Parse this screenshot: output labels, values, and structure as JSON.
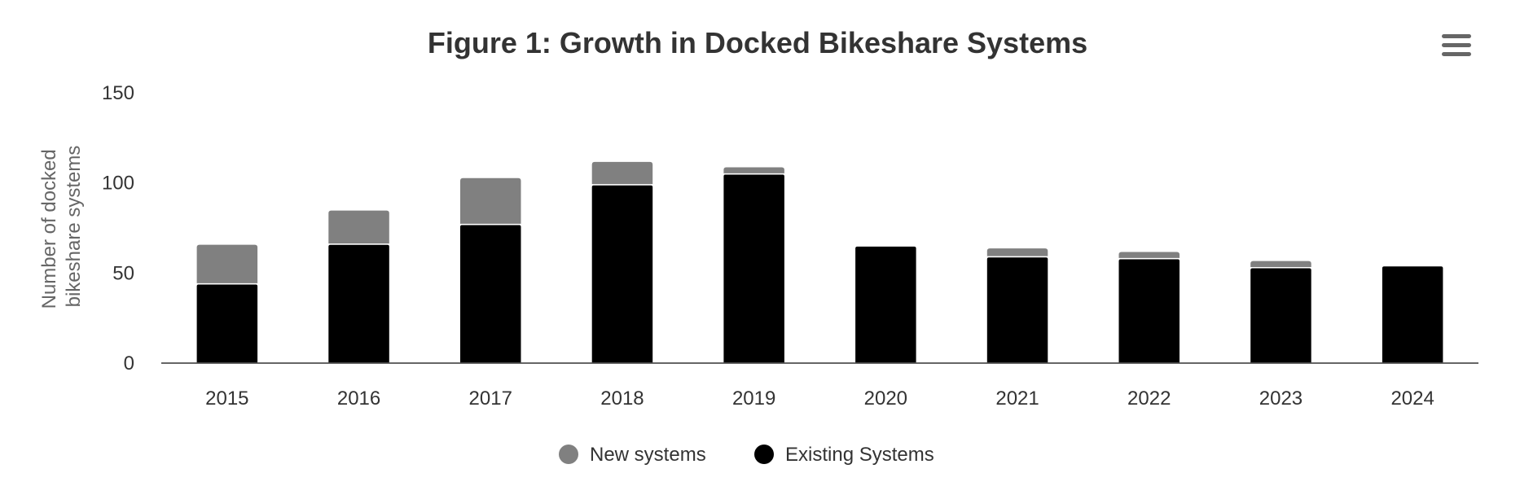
{
  "chart_data": {
    "type": "bar",
    "stacked": true,
    "title": "Figure 1: Growth in Docked Bikeshare Systems",
    "ylabel_lines": [
      "Number of docked",
      "bikeshare systems"
    ],
    "categories": [
      "2015",
      "2016",
      "2017",
      "2018",
      "2019",
      "2020",
      "2021",
      "2022",
      "2023",
      "2024"
    ],
    "ylim": [
      0,
      150
    ],
    "yticks": [
      0,
      50,
      100,
      150
    ],
    "grid": false,
    "legend_position": "bottom-center",
    "series": [
      {
        "name": "New systems",
        "color": "#808080",
        "values": [
          22,
          19,
          26,
          13,
          4,
          0,
          5,
          4,
          4,
          0
        ]
      },
      {
        "name": "Existing Systems",
        "color": "#000000",
        "values": [
          44,
          66,
          77,
          99,
          105,
          65,
          59,
          58,
          53,
          54
        ]
      }
    ]
  },
  "menu_icon": "hamburger-menu-icon"
}
